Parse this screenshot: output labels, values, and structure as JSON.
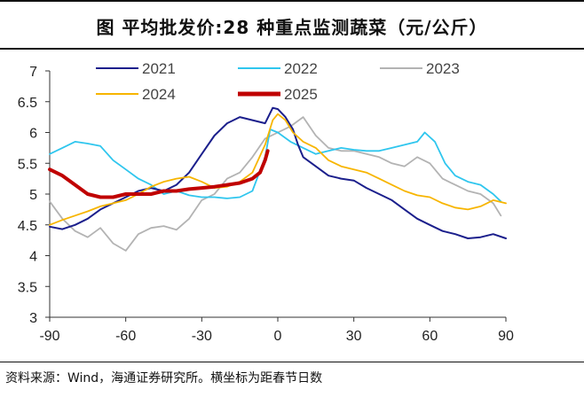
{
  "title": "图  平均批发价:28 种重点监测蔬菜（元/公斤）",
  "source": "资料来源：Wind，海通证券研究所。横坐标为距春节日数",
  "chart_data": {
    "type": "line",
    "title": "平均批发价:28 种重点监测蔬菜（元/公斤）",
    "xlabel": "距春节日数",
    "ylabel": "元/公斤",
    "xlim": [
      -90,
      90
    ],
    "ylim": [
      3,
      7
    ],
    "xticks": [
      -90,
      -60,
      -30,
      0,
      30,
      60,
      90
    ],
    "yticks": [
      3,
      3.5,
      4,
      4.5,
      5,
      5.5,
      6,
      6.5,
      7
    ],
    "xtick_labels": [
      "-90",
      "-60",
      "-30",
      "0",
      "30",
      "60",
      "90"
    ],
    "ytick_labels": [
      "3",
      "3.5",
      "4",
      "4.5",
      "5",
      "5.5",
      "6",
      "6.5",
      "7"
    ],
    "legend_position": "top",
    "series": [
      {
        "name": "2021",
        "color": "#1b1f8c",
        "width": 2,
        "points": [
          [
            -90,
            4.47
          ],
          [
            -85,
            4.43
          ],
          [
            -80,
            4.5
          ],
          [
            -75,
            4.6
          ],
          [
            -70,
            4.75
          ],
          [
            -65,
            4.85
          ],
          [
            -60,
            4.95
          ],
          [
            -55,
            5.05
          ],
          [
            -50,
            5.1
          ],
          [
            -45,
            5.05
          ],
          [
            -40,
            5.15
          ],
          [
            -35,
            5.35
          ],
          [
            -30,
            5.65
          ],
          [
            -25,
            5.95
          ],
          [
            -20,
            6.15
          ],
          [
            -15,
            6.25
          ],
          [
            -10,
            6.2
          ],
          [
            -5,
            6.15
          ],
          [
            -2,
            6.4
          ],
          [
            0,
            6.38
          ],
          [
            3,
            6.25
          ],
          [
            6,
            6.05
          ],
          [
            8,
            5.8
          ],
          [
            10,
            5.6
          ],
          [
            15,
            5.45
          ],
          [
            20,
            5.3
          ],
          [
            25,
            5.25
          ],
          [
            30,
            5.22
          ],
          [
            35,
            5.1
          ],
          [
            40,
            5.0
          ],
          [
            45,
            4.9
          ],
          [
            50,
            4.75
          ],
          [
            55,
            4.6
          ],
          [
            60,
            4.5
          ],
          [
            65,
            4.4
          ],
          [
            70,
            4.35
          ],
          [
            75,
            4.28
          ],
          [
            80,
            4.3
          ],
          [
            85,
            4.35
          ],
          [
            90,
            4.28
          ]
        ]
      },
      {
        "name": "2022",
        "color": "#2fc6ee",
        "width": 1.8,
        "points": [
          [
            -90,
            5.65
          ],
          [
            -85,
            5.75
          ],
          [
            -80,
            5.85
          ],
          [
            -75,
            5.82
          ],
          [
            -70,
            5.78
          ],
          [
            -65,
            5.55
          ],
          [
            -60,
            5.4
          ],
          [
            -55,
            5.25
          ],
          [
            -50,
            5.15
          ],
          [
            -45,
            5.0
          ],
          [
            -40,
            5.05
          ],
          [
            -35,
            4.98
          ],
          [
            -30,
            4.95
          ],
          [
            -25,
            4.95
          ],
          [
            -20,
            4.93
          ],
          [
            -15,
            4.95
          ],
          [
            -10,
            5.05
          ],
          [
            -5,
            5.6
          ],
          [
            -3,
            6.05
          ],
          [
            0,
            6.0
          ],
          [
            5,
            5.85
          ],
          [
            10,
            5.75
          ],
          [
            15,
            5.65
          ],
          [
            20,
            5.7
          ],
          [
            25,
            5.75
          ],
          [
            30,
            5.72
          ],
          [
            35,
            5.7
          ],
          [
            40,
            5.7
          ],
          [
            45,
            5.75
          ],
          [
            50,
            5.8
          ],
          [
            55,
            5.85
          ],
          [
            58,
            6.0
          ],
          [
            62,
            5.85
          ],
          [
            66,
            5.5
          ],
          [
            70,
            5.3
          ],
          [
            75,
            5.2
          ],
          [
            80,
            5.15
          ],
          [
            85,
            5.0
          ],
          [
            88,
            4.88
          ]
        ]
      },
      {
        "name": "2023",
        "color": "#b3b3b3",
        "width": 1.8,
        "points": [
          [
            -90,
            4.88
          ],
          [
            -85,
            4.6
          ],
          [
            -80,
            4.4
          ],
          [
            -75,
            4.3
          ],
          [
            -70,
            4.45
          ],
          [
            -65,
            4.2
          ],
          [
            -60,
            4.08
          ],
          [
            -55,
            4.35
          ],
          [
            -50,
            4.45
          ],
          [
            -45,
            4.48
          ],
          [
            -40,
            4.42
          ],
          [
            -35,
            4.6
          ],
          [
            -30,
            4.9
          ],
          [
            -25,
            5.0
          ],
          [
            -20,
            5.25
          ],
          [
            -15,
            5.35
          ],
          [
            -10,
            5.6
          ],
          [
            -5,
            5.9
          ],
          [
            0,
            6.0
          ],
          [
            5,
            6.1
          ],
          [
            10,
            6.25
          ],
          [
            15,
            5.95
          ],
          [
            20,
            5.75
          ],
          [
            25,
            5.7
          ],
          [
            30,
            5.7
          ],
          [
            35,
            5.65
          ],
          [
            40,
            5.6
          ],
          [
            45,
            5.5
          ],
          [
            50,
            5.45
          ],
          [
            55,
            5.6
          ],
          [
            60,
            5.5
          ],
          [
            65,
            5.25
          ],
          [
            70,
            5.15
          ],
          [
            75,
            5.05
          ],
          [
            80,
            5.0
          ],
          [
            85,
            4.85
          ],
          [
            88,
            4.65
          ]
        ]
      },
      {
        "name": "2024",
        "color": "#f7b500",
        "width": 1.8,
        "points": [
          [
            -90,
            4.5
          ],
          [
            -85,
            4.58
          ],
          [
            -80,
            4.65
          ],
          [
            -75,
            4.72
          ],
          [
            -70,
            4.8
          ],
          [
            -65,
            4.85
          ],
          [
            -60,
            4.9
          ],
          [
            -55,
            5.0
          ],
          [
            -50,
            5.12
          ],
          [
            -45,
            5.2
          ],
          [
            -40,
            5.25
          ],
          [
            -35,
            5.28
          ],
          [
            -30,
            5.2
          ],
          [
            -25,
            5.1
          ],
          [
            -20,
            5.12
          ],
          [
            -15,
            5.2
          ],
          [
            -10,
            5.35
          ],
          [
            -5,
            5.8
          ],
          [
            -2,
            6.2
          ],
          [
            0,
            6.3
          ],
          [
            3,
            6.2
          ],
          [
            6,
            6.0
          ],
          [
            10,
            5.85
          ],
          [
            15,
            5.75
          ],
          [
            20,
            5.55
          ],
          [
            25,
            5.45
          ],
          [
            30,
            5.4
          ],
          [
            35,
            5.35
          ],
          [
            40,
            5.25
          ],
          [
            45,
            5.15
          ],
          [
            50,
            5.05
          ],
          [
            55,
            4.98
          ],
          [
            60,
            4.95
          ],
          [
            65,
            4.85
          ],
          [
            70,
            4.78
          ],
          [
            75,
            4.75
          ],
          [
            80,
            4.8
          ],
          [
            85,
            4.9
          ],
          [
            90,
            4.85
          ]
        ]
      },
      {
        "name": "2025",
        "color": "#c00000",
        "width": 4,
        "points": [
          [
            -90,
            5.4
          ],
          [
            -85,
            5.3
          ],
          [
            -80,
            5.15
          ],
          [
            -75,
            5.0
          ],
          [
            -70,
            4.95
          ],
          [
            -65,
            4.95
          ],
          [
            -60,
            5.0
          ],
          [
            -55,
            5.0
          ],
          [
            -50,
            5.0
          ],
          [
            -45,
            5.05
          ],
          [
            -40,
            5.05
          ],
          [
            -35,
            5.08
          ],
          [
            -30,
            5.1
          ],
          [
            -25,
            5.12
          ],
          [
            -20,
            5.15
          ],
          [
            -15,
            5.18
          ],
          [
            -10,
            5.25
          ],
          [
            -7,
            5.35
          ],
          [
            -5,
            5.55
          ],
          [
            -4,
            5.7
          ]
        ]
      }
    ]
  }
}
